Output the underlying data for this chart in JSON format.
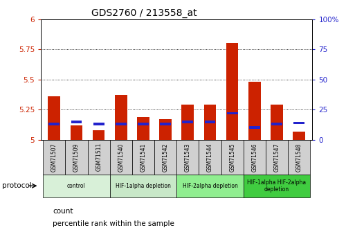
{
  "title": "GDS2760 / 213558_at",
  "samples": [
    "GSM71507",
    "GSM71509",
    "GSM71511",
    "GSM71540",
    "GSM71541",
    "GSM71542",
    "GSM71543",
    "GSM71544",
    "GSM71545",
    "GSM71546",
    "GSM71547",
    "GSM71548"
  ],
  "red_values": [
    5.36,
    5.12,
    5.08,
    5.37,
    5.19,
    5.17,
    5.29,
    5.29,
    5.8,
    5.48,
    5.29,
    5.07
  ],
  "blue_values": [
    5.13,
    5.15,
    5.13,
    5.13,
    5.13,
    5.13,
    5.15,
    5.15,
    5.22,
    5.1,
    5.13,
    5.14
  ],
  "ymin": 5.0,
  "ymax": 6.0,
  "yticks": [
    5.0,
    5.25,
    5.5,
    5.75,
    6.0
  ],
  "ytick_labels": [
    "5",
    "5.25",
    "5.5",
    "5.75",
    "6"
  ],
  "right_yticks": [
    0,
    25,
    50,
    75,
    100
  ],
  "right_ytick_labels": [
    "0",
    "25",
    "50",
    "75",
    "100%"
  ],
  "groups": [
    {
      "label": "control",
      "start": 0,
      "end": 3,
      "color": "#d8f0d8"
    },
    {
      "label": "HIF-1alpha depletion",
      "start": 3,
      "end": 6,
      "color": "#c8e8c8"
    },
    {
      "label": "HIF-2alpha depletion",
      "start": 6,
      "end": 9,
      "color": "#90ee90"
    },
    {
      "label": "HIF-1alpha HIF-2alpha\ndepletion",
      "start": 9,
      "end": 12,
      "color": "#40cc40"
    }
  ],
  "bar_color_red": "#cc2200",
  "bar_color_blue": "#2222cc",
  "bar_width": 0.55,
  "protocol_label": "protocol",
  "legend_count": "count",
  "legend_pct": "percentile rank within the sample",
  "left_tick_color": "#cc2200",
  "right_tick_color": "#2222cc"
}
